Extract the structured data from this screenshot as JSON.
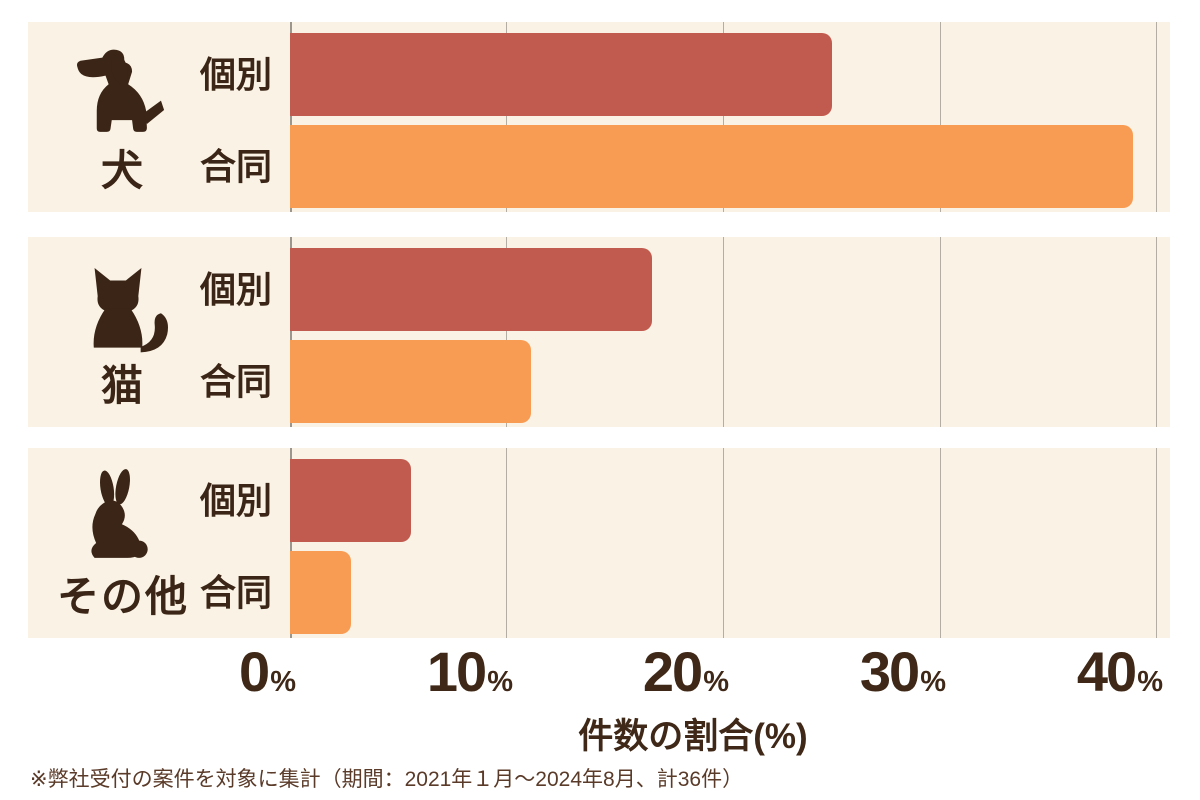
{
  "chart_data": {
    "type": "bar",
    "orientation": "horizontal",
    "xlabel": "件数の割合(%)",
    "xlim": [
      0,
      40.6
    ],
    "grid": true,
    "tick_labels": [
      "0",
      "10",
      "20",
      "30",
      "40"
    ],
    "tick_suffix": "%",
    "tick_values": [
      0,
      10,
      20,
      30,
      40
    ],
    "series_names": [
      "個別",
      "合同"
    ],
    "groups": [
      {
        "category": "犬",
        "icon": "dog-icon",
        "bars": [
          {
            "label": "個別",
            "value_pct": 25.0
          },
          {
            "label": "合同",
            "value_pct": 38.9
          }
        ]
      },
      {
        "category": "猫",
        "icon": "cat-icon",
        "bars": [
          {
            "label": "個別",
            "value_pct": 16.7
          },
          {
            "label": "合同",
            "value_pct": 11.1
          }
        ]
      },
      {
        "category": "その他",
        "icon": "rabbit-icon",
        "bars": [
          {
            "label": "個別",
            "value_pct": 5.6
          },
          {
            "label": "合同",
            "value_pct": 2.8
          }
        ]
      }
    ]
  },
  "footnote": "※弊社受付の案件を対象に集計（期間：2021年１月～2024年8月、計36件）",
  "theme": {
    "panel_bg": "#FAF3E5",
    "bar_individual": "#C25B4F",
    "bar_joint": "#F99C53",
    "text_brown": "#3B2516",
    "axis_brown": "#3F2817",
    "footnote_brown": "#5A3A28",
    "gridline": "#B2AEA3"
  }
}
